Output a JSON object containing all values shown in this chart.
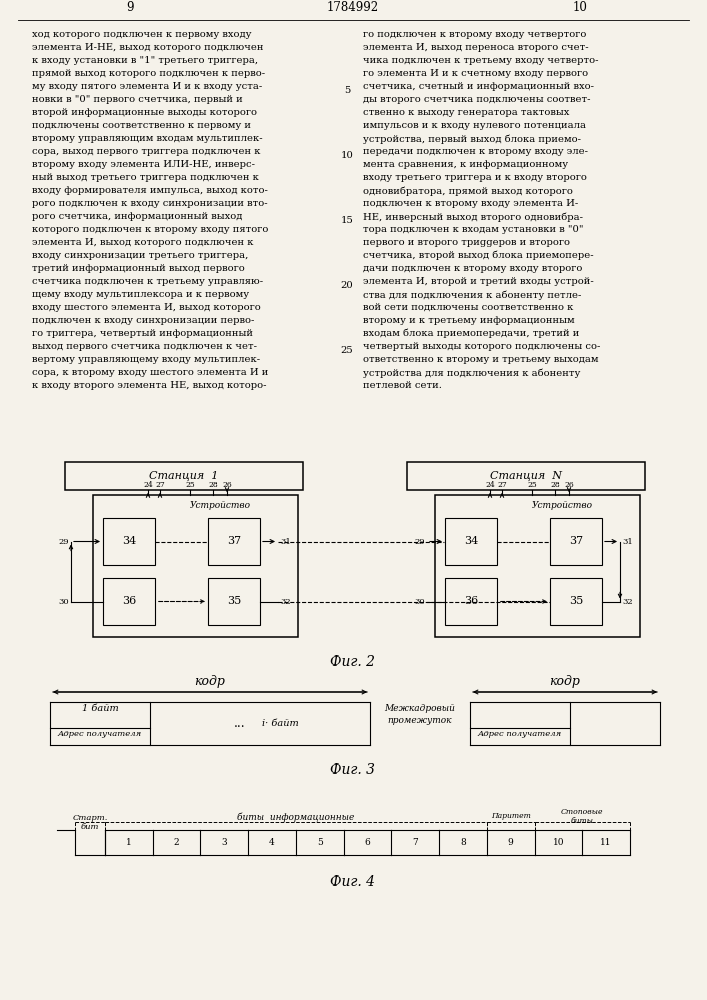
{
  "background_color": "#f5f2ea",
  "text_left": "ход которого подключен к первому входу\nэлемента И-НЕ, выход которого подключен\nк входу установки в \"1\" третьего триггера,\nпрямой выход которого подключен к перво-\nму входу пятого элемента И и к входу уста-\nновки в \"0\" первого счетчика, первый и\nвторой информационные выходы которого\nподключены соответственно к первому и\nвторому управляющим входам мультиплек-\nсора, выход первого триггера подключен к\nвторому входу элемента ИЛИ-НЕ, инверс-\nный выход третьего триггера подключен к\nвходу формирователя импульса, выход кото-\nрого подключен к входу синхронизации вто-\nрого счетчика, информационный выход\nкоторого подключен к второму входу пятого\nэлемента И, выход которого подключен к\nвходу синхронизации третьего триггера,\nтретий информационный выход первого\nсчетчика подключен к третьему управляю-\nщему входу мультиплексора и к первому\nвходу шестого элемента И, выход которого\nподключен к входу синхронизации перво-\nго триггера, четвертый информационный\nвыход первого счетчика подключен к чет-\nвертому управляющему входу мультиплек-\nсора, к второму входу шестого элемента И и\nк входу второго элемента НЕ, выход которо-",
  "text_right": "го подключен к второму входу четвертого\nэлемента И, выход переноса второго счет-\nчика подключен к третьему входу четверто-\nго элемента И и к счетному входу первого\nсчетчика, счетный и информационный вхо-\nды второго счетчика подключены соответ-\nственно к выходу генератора тактовых\nимпульсов и к входу нулевого потенциала\nустройства, первый выход блока приемо-\nпередачи подключен к второму входу эле-\nмента сравнения, к информационному\nвходу третьего триггера и к входу второго\nодновибратора, прямой выход которого\nподключен к второму входу элемента И-\nНЕ, инверсный выход второго одновибра-\nтора подключен к входам установки в \"0\"\nпервого и второго триggеров и второго\nсчетчика, второй выход блока приемопере-\nдачи подключен к второму входу второго\nэлемента И, второй и третий входы устрой-\nства для подключения к абоненту петле-\nвой сети подключены соответственно к\nвторому и к третьему информационным\nвходам блока приемопередачи, третий и\nчетвертый выходы которого подключены со-\nответственно к второму и третьему выходам\nустройства для подключения к абоненту\nпетлевой сети.",
  "fig2_caption": "Фuг. 2",
  "fig3_caption": "Фuг. 3",
  "fig4_caption": "Фuг. 4"
}
